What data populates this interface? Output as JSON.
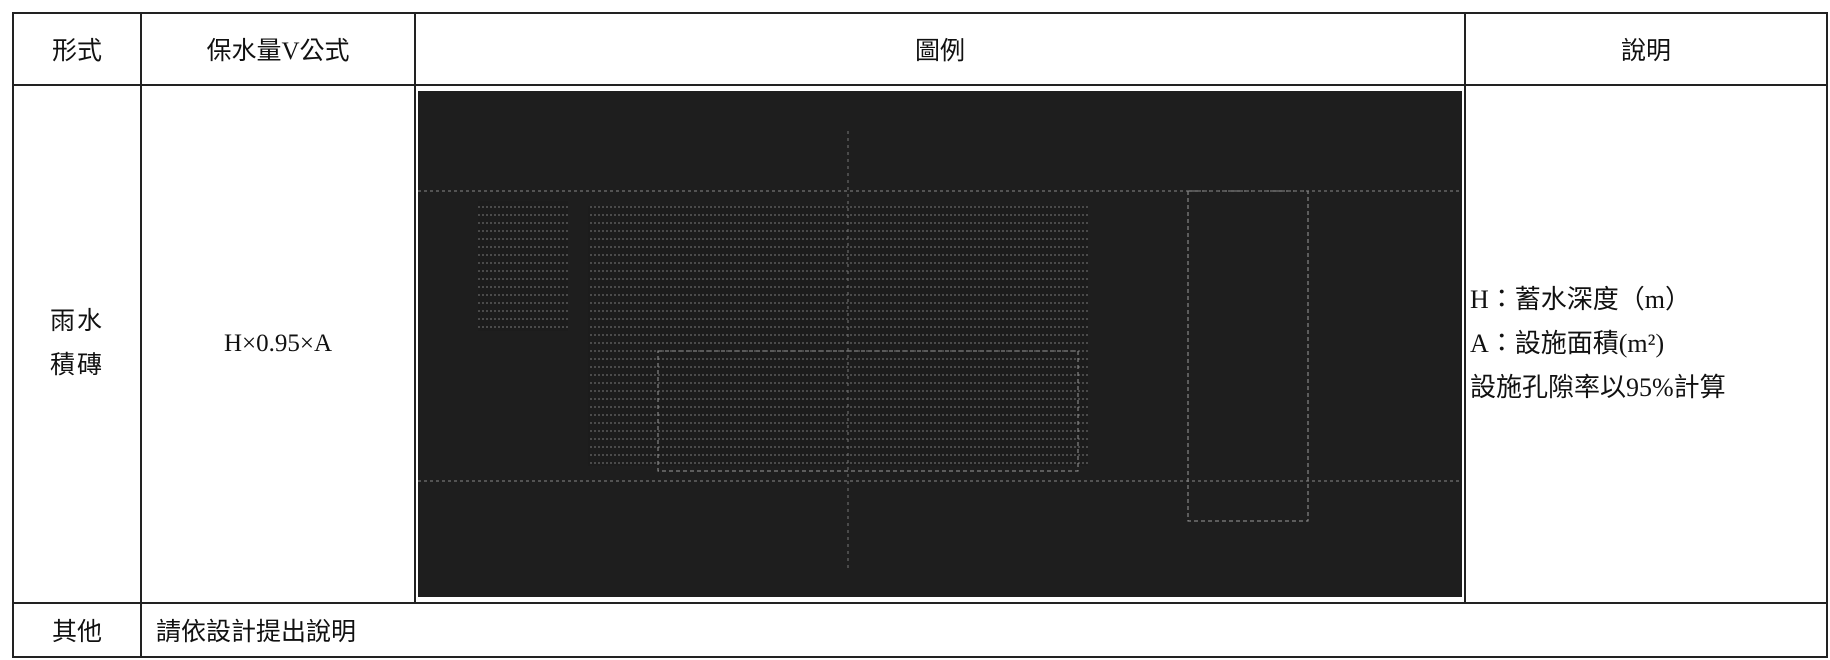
{
  "table": {
    "header": [
      "形式",
      "保水量V公式",
      "圖例",
      "說明"
    ],
    "rows": [
      {
        "type": [
          "雨水",
          "積磚"
        ],
        "formula": "H×0.95×A",
        "notes": [
          "H：蓄水深度（m）",
          "A：設施面積(m²)",
          "設施孔隙率以95%計算"
        ]
      }
    ],
    "other": {
      "label": "其他",
      "text": "請依設計提出說明"
    }
  }
}
